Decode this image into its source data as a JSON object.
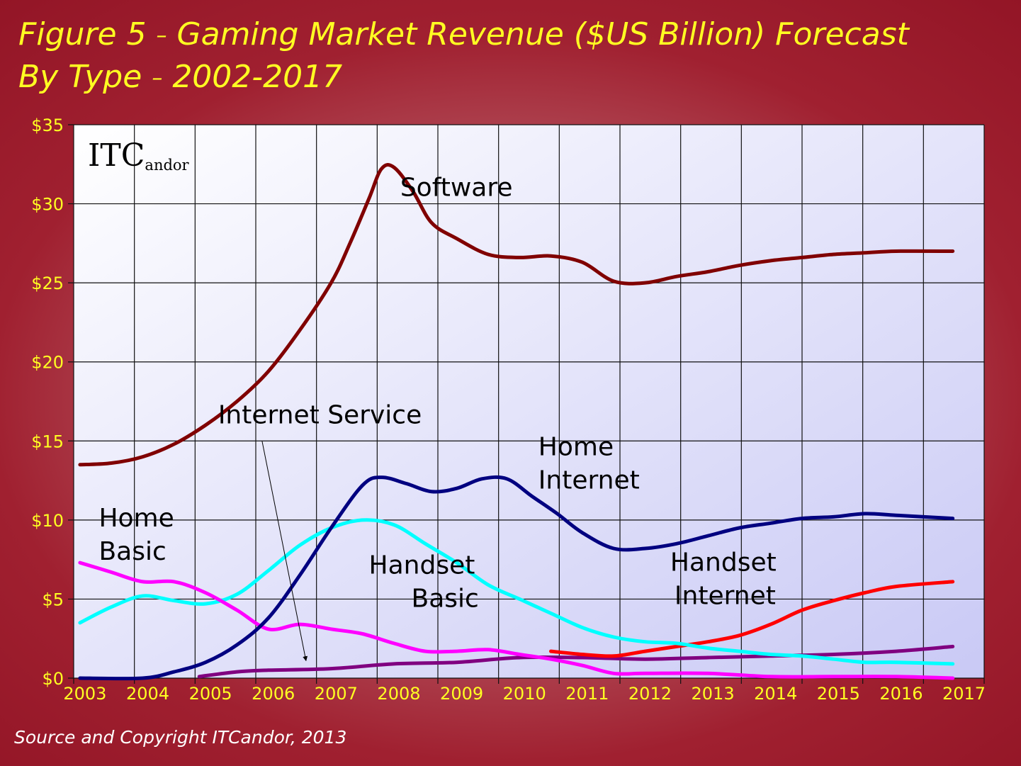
{
  "title_line1": "Figure 5",
  "title_dash": "–",
  "title_line1_rest": "Gaming Market Revenue ($US Billion) Forecast",
  "title_line2": "By Type",
  "title_line2_rest": "2002-2017",
  "source": "Source and Copyright ITCandor, 2013",
  "logo": {
    "big1": "I",
    "big2": "T",
    "big3": "C",
    "small": "andor"
  },
  "chart_data": {
    "type": "line",
    "title": "Figure 5 – Gaming Market Revenue ($US Billion) Forecast By Type – 2002-2017",
    "xlabel": "",
    "ylabel": "",
    "categories": [
      "2003",
      "2004",
      "2005",
      "2006",
      "2007",
      "2008",
      "2009",
      "2010",
      "2011",
      "2012",
      "2013",
      "2014",
      "2015",
      "2016",
      "2017"
    ],
    "x_range": [
      2002.9,
      2017.4
    ],
    "ylim": [
      0,
      35
    ],
    "y_ticks": [
      0,
      5,
      10,
      15,
      20,
      25,
      30,
      35
    ],
    "y_tick_labels": [
      "$0",
      "$5",
      "$10",
      "$15",
      "$20",
      "$25",
      "$30",
      "$35"
    ],
    "grid": true,
    "legend": "none (series labelled directly on chart)",
    "background_color": "#ffffff",
    "series": [
      {
        "name": "Software",
        "color": "#800000",
        "points": [
          [
            2003,
            13.5
          ],
          [
            2003.5,
            13.6
          ],
          [
            2004,
            14.0
          ],
          [
            2004.5,
            14.8
          ],
          [
            2005,
            16.0
          ],
          [
            2005.5,
            17.5
          ],
          [
            2006,
            19.4
          ],
          [
            2006.5,
            22.0
          ],
          [
            2007,
            25.0
          ],
          [
            2007.3,
            27.5
          ],
          [
            2007.6,
            30.3
          ],
          [
            2007.8,
            32.2
          ],
          [
            2008,
            32.3
          ],
          [
            2008.3,
            30.8
          ],
          [
            2008.6,
            28.8
          ],
          [
            2009,
            27.8
          ],
          [
            2009.5,
            26.8
          ],
          [
            2010,
            26.6
          ],
          [
            2010.5,
            26.7
          ],
          [
            2011,
            26.3
          ],
          [
            2011.5,
            25.1
          ],
          [
            2012,
            25.0
          ],
          [
            2012.5,
            25.4
          ],
          [
            2013,
            25.7
          ],
          [
            2013.5,
            26.1
          ],
          [
            2014,
            26.4
          ],
          [
            2014.5,
            26.6
          ],
          [
            2015,
            26.8
          ],
          [
            2015.5,
            26.9
          ],
          [
            2016,
            27.0
          ],
          [
            2016.9,
            27.0
          ]
        ],
        "label_lines": [
          "Software"
        ],
        "label_at": [
          2008.1,
          30.5
        ]
      },
      {
        "name": "Home Internet",
        "color": "#000080",
        "points": [
          [
            2003,
            0.0
          ],
          [
            2004,
            0.0
          ],
          [
            2004.5,
            0.4
          ],
          [
            2005,
            1.0
          ],
          [
            2005.5,
            2.1
          ],
          [
            2006,
            3.8
          ],
          [
            2006.5,
            6.5
          ],
          [
            2007,
            9.5
          ],
          [
            2007.5,
            12.2
          ],
          [
            2007.8,
            12.7
          ],
          [
            2008.2,
            12.3
          ],
          [
            2008.6,
            11.8
          ],
          [
            2009,
            12.0
          ],
          [
            2009.4,
            12.6
          ],
          [
            2009.8,
            12.6
          ],
          [
            2010.2,
            11.5
          ],
          [
            2010.6,
            10.4
          ],
          [
            2011,
            9.2
          ],
          [
            2011.5,
            8.2
          ],
          [
            2012,
            8.2
          ],
          [
            2012.5,
            8.5
          ],
          [
            2013,
            9.0
          ],
          [
            2013.5,
            9.5
          ],
          [
            2014,
            9.8
          ],
          [
            2014.5,
            10.1
          ],
          [
            2015,
            10.2
          ],
          [
            2015.5,
            10.4
          ],
          [
            2016,
            10.3
          ],
          [
            2016.9,
            10.1
          ]
        ],
        "label_lines": [
          "Home",
          "Internet"
        ],
        "label_at": [
          2010.3,
          14.1
        ]
      },
      {
        "name": "Home Basic",
        "color": "#ff00ff",
        "points": [
          [
            2003,
            7.3
          ],
          [
            2003.5,
            6.7
          ],
          [
            2004,
            6.1
          ],
          [
            2004.5,
            6.1
          ],
          [
            2005,
            5.4
          ],
          [
            2005.5,
            4.3
          ],
          [
            2006,
            3.1
          ],
          [
            2006.5,
            3.4
          ],
          [
            2007,
            3.1
          ],
          [
            2007.5,
            2.8
          ],
          [
            2008,
            2.2
          ],
          [
            2008.5,
            1.7
          ],
          [
            2009,
            1.7
          ],
          [
            2009.5,
            1.8
          ],
          [
            2010,
            1.5
          ],
          [
            2010.5,
            1.2
          ],
          [
            2011,
            0.8
          ],
          [
            2011.5,
            0.3
          ],
          [
            2012,
            0.3
          ],
          [
            2013,
            0.3
          ],
          [
            2014,
            0.1
          ],
          [
            2015,
            0.1
          ],
          [
            2016,
            0.1
          ],
          [
            2016.9,
            0.0
          ]
        ],
        "label_lines": [
          "Home",
          "Basic"
        ],
        "label_at": [
          2003.3,
          9.6
        ]
      },
      {
        "name": "Handset Basic",
        "color": "#00ffff",
        "points": [
          [
            2003,
            3.5
          ],
          [
            2003.5,
            4.5
          ],
          [
            2004,
            5.2
          ],
          [
            2004.5,
            4.9
          ],
          [
            2005,
            4.7
          ],
          [
            2005.5,
            5.3
          ],
          [
            2006,
            6.8
          ],
          [
            2006.5,
            8.4
          ],
          [
            2007,
            9.5
          ],
          [
            2007.5,
            10.0
          ],
          [
            2008,
            9.7
          ],
          [
            2008.5,
            8.5
          ],
          [
            2009,
            7.3
          ],
          [
            2009.5,
            5.9
          ],
          [
            2010,
            5.0
          ],
          [
            2010.5,
            4.1
          ],
          [
            2011,
            3.2
          ],
          [
            2011.5,
            2.6
          ],
          [
            2012,
            2.3
          ],
          [
            2012.5,
            2.2
          ],
          [
            2013,
            1.9
          ],
          [
            2013.5,
            1.7
          ],
          [
            2014,
            1.5
          ],
          [
            2014.5,
            1.4
          ],
          [
            2015,
            1.2
          ],
          [
            2015.5,
            1.0
          ],
          [
            2016,
            1.0
          ],
          [
            2016.9,
            0.9
          ]
        ],
        "label_lines": [
          "Handset",
          "Basic"
        ],
        "label_at": [
          2007.6,
          6.6
        ]
      },
      {
        "name": "Handset Internet",
        "color": "#ff0000",
        "points": [
          [
            2010.5,
            1.7
          ],
          [
            2011,
            1.5
          ],
          [
            2011.5,
            1.4
          ],
          [
            2012,
            1.7
          ],
          [
            2012.5,
            2.0
          ],
          [
            2013,
            2.3
          ],
          [
            2013.5,
            2.7
          ],
          [
            2014,
            3.4
          ],
          [
            2014.5,
            4.3
          ],
          [
            2015,
            4.9
          ],
          [
            2015.5,
            5.4
          ],
          [
            2016,
            5.8
          ],
          [
            2016.9,
            6.1
          ]
        ],
        "label_lines": [
          "Handset",
          "Internet"
        ],
        "label_at": [
          2012.4,
          6.8
        ]
      },
      {
        "name": "Internet Service",
        "color": "#800080",
        "points": [
          [
            2004.9,
            0.1
          ],
          [
            2005.5,
            0.4
          ],
          [
            2006,
            0.5
          ],
          [
            2007,
            0.6
          ],
          [
            2008,
            0.9
          ],
          [
            2009,
            1.0
          ],
          [
            2010,
            1.3
          ],
          [
            2011,
            1.3
          ],
          [
            2012,
            1.2
          ],
          [
            2013,
            1.3
          ],
          [
            2014,
            1.4
          ],
          [
            2015,
            1.5
          ],
          [
            2016,
            1.7
          ],
          [
            2016.9,
            2.0
          ]
        ],
        "label_lines": [
          "Internet Service"
        ],
        "label_at": [
          2005.2,
          16.1
        ]
      }
    ],
    "annotations": [
      {
        "text": "Internet Service",
        "arrow_from": [
          2005.9,
          15.0
        ],
        "arrow_to": [
          2006.6,
          1.1
        ]
      }
    ]
  }
}
